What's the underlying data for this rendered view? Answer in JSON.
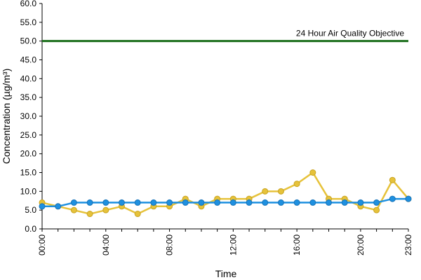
{
  "chart_data": {
    "type": "line",
    "title": "",
    "xlabel": "Time",
    "ylabel": "Concentration (µg/m³)",
    "ylim": [
      0,
      60
    ],
    "yticks": [
      "0.0",
      "5.0",
      "10.0",
      "15.0",
      "20.0",
      "25.0",
      "30.0",
      "35.0",
      "40.0",
      "45.0",
      "50.0",
      "55.0",
      "60.0"
    ],
    "xticks": [
      "00:00",
      "04:00",
      "08:00",
      "12:00",
      "16:00",
      "20:00",
      "23:00"
    ],
    "x": [
      "00:00",
      "01:00",
      "02:00",
      "03:00",
      "04:00",
      "05:00",
      "06:00",
      "07:00",
      "08:00",
      "09:00",
      "10:00",
      "11:00",
      "12:00",
      "13:00",
      "14:00",
      "15:00",
      "16:00",
      "17:00",
      "18:00",
      "19:00",
      "20:00",
      "21:00",
      "22:00",
      "23:00"
    ],
    "grid": false,
    "objective": {
      "label": "24 Hour Air Quality Objective",
      "value": 50,
      "color": "#1a6e1a"
    },
    "series": [
      {
        "color": "#e6c23a",
        "values": [
          7,
          6,
          5,
          4,
          5,
          6,
          4,
          6,
          6,
          8,
          6,
          8,
          8,
          8,
          10,
          10,
          12,
          15,
          8,
          8,
          6,
          5,
          13,
          8
        ]
      },
      {
        "color": "#1e90e0",
        "values": [
          6,
          6,
          7,
          7,
          7,
          7,
          7,
          7,
          7,
          7,
          7,
          7,
          7,
          7,
          7,
          7,
          7,
          7,
          7,
          7,
          7,
          7,
          8,
          8
        ]
      }
    ]
  }
}
